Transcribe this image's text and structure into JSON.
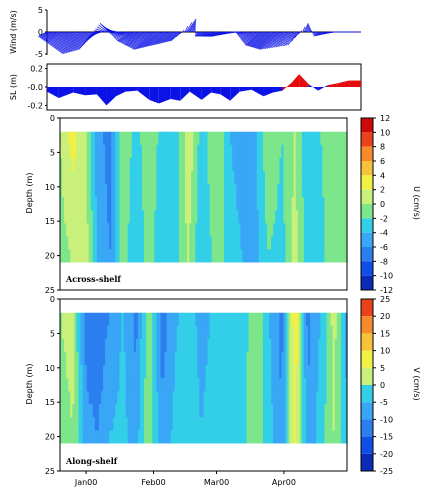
{
  "chart_data": [
    {
      "panel": "wind",
      "type": "line",
      "ylabel": "Wind (m/s)",
      "ylim": [
        -5,
        5
      ],
      "yticks": [
        "5",
        "0",
        "-5"
      ],
      "description_of_marks": "wind stick vectors",
      "x_time_axis": {
        "range": [
          "1999-12-20",
          "2000-04-30"
        ]
      },
      "series": [
        {
          "dates": [
            "1999-12-20",
            "1999-12-27",
            "2000-01-03",
            "2000-01-08",
            "2000-01-15",
            "2000-01-24",
            "2000-02-02",
            "2000-02-08",
            "2000-02-14",
            "2000-02-17",
            "2000-02-22",
            "2000-03-02",
            "2000-03-10",
            "2000-03-18",
            "2000-03-26",
            "2000-04-03",
            "2000-04-06",
            "2000-04-12",
            "2000-04-20",
            "2000-04-28"
          ],
          "u": [
            -2,
            -3,
            -4,
            -3,
            -2,
            -3,
            -4,
            -3,
            -2,
            2,
            -1,
            -2,
            -1,
            -3,
            -4,
            -2,
            1,
            -1,
            -1,
            -0.5
          ],
          "v": [
            -1,
            -3,
            -5,
            -4,
            2,
            -2,
            -4,
            -3,
            -2,
            3,
            -1,
            -1,
            0,
            -3,
            -4,
            -3,
            2,
            -1,
            0,
            0
          ]
        }
      ]
    },
    {
      "panel": "sea-level",
      "type": "area",
      "ylabel": "SL (m)",
      "ylim": [
        -0.25,
        0.2
      ],
      "yticks": [
        "0.2",
        "-0.0",
        "-0.2"
      ],
      "colors": {
        "negative": "#0b12e6",
        "positive": "#e30b0b"
      },
      "series": [
        {
          "dates": [
            "1999-12-20",
            "1999-12-25",
            "1999-12-31",
            "2000-01-05",
            "2000-01-10",
            "2000-01-14",
            "2000-01-18",
            "2000-01-22",
            "2000-01-27",
            "2000-02-01",
            "2000-02-05",
            "2000-02-10",
            "2000-02-14",
            "2000-02-18",
            "2000-02-23",
            "2000-02-27",
            "2000-03-02",
            "2000-03-06",
            "2000-03-10",
            "2000-03-15",
            "2000-03-20",
            "2000-03-24",
            "2000-03-28",
            "2000-04-01",
            "2000-04-04",
            "2000-04-08",
            "2000-04-12",
            "2000-04-16",
            "2000-04-20",
            "2000-04-25",
            "2000-04-30"
          ],
          "values": [
            -0.05,
            -0.12,
            -0.06,
            -0.09,
            -0.08,
            -0.2,
            -0.1,
            -0.05,
            -0.04,
            -0.14,
            -0.18,
            -0.13,
            -0.15,
            -0.05,
            -0.14,
            -0.06,
            -0.08,
            -0.15,
            -0.05,
            -0.03,
            -0.1,
            -0.06,
            -0.04,
            0.05,
            0.14,
            0.03,
            -0.04,
            0.02,
            0.04,
            0.07,
            0.07
          ]
        }
      ]
    },
    {
      "panel": "across-shelf",
      "type": "heatmap",
      "label": "Across-shelf",
      "ylabel": "Depth (m)",
      "ylim": [
        25,
        0
      ],
      "yticks": [
        "0",
        "5",
        "10",
        "15",
        "20",
        "25"
      ],
      "colorbar_label": "U (cm/s)",
      "colorbar_ticks": [
        "12",
        "10",
        "8",
        "6",
        "4",
        "2",
        "0",
        "-2",
        "-4",
        "-6",
        "-8",
        "-10",
        "-12"
      ],
      "depths_m": [
        2,
        21
      ],
      "dates": [
        "1999-12-20",
        "1999-12-26",
        "2000-01-01",
        "2000-01-06",
        "2000-01-12",
        "2000-01-18",
        "2000-01-24",
        "2000-01-30",
        "2000-02-05",
        "2000-02-11",
        "2000-02-17",
        "2000-02-23",
        "2000-03-01",
        "2000-03-07",
        "2000-03-13",
        "2000-03-19",
        "2000-03-25",
        "2000-03-31",
        "2000-04-06",
        "2000-04-12",
        "2000-04-18",
        "2000-04-24",
        "2000-04-30"
      ],
      "values": [
        [
          1,
          4,
          1,
          -4,
          -6,
          1,
          -2,
          1,
          -2,
          -3,
          3,
          -2,
          1,
          -3,
          -4,
          -3,
          1,
          -1,
          1,
          -3,
          -1,
          1,
          0
        ],
        [
          0,
          1,
          2,
          -3,
          -5,
          0,
          -3,
          0,
          -3,
          -2,
          1,
          -3,
          0,
          -2,
          -3,
          -4,
          -1,
          -2,
          2,
          -2,
          -2,
          1,
          0
        ]
      ]
    },
    {
      "panel": "along-shelf",
      "type": "heatmap",
      "label": "Along-shelf",
      "ylabel": "Depth (m)",
      "ylim": [
        25,
        0
      ],
      "yticks": [
        "0",
        "5",
        "10",
        "15",
        "20",
        "25"
      ],
      "colorbar_label": "V (cm/s)",
      "colorbar_ticks": [
        "25",
        "20",
        "15",
        "10",
        "5",
        "0",
        "-5",
        "-10",
        "-15",
        "-20",
        "-25"
      ],
      "x_tick_labels": [
        "Jan00",
        "Feb00",
        "Mar00",
        "Apr00"
      ],
      "depths_m": [
        2,
        21
      ],
      "dates": [
        "1999-12-20",
        "1999-12-26",
        "2000-01-01",
        "2000-01-06",
        "2000-01-12",
        "2000-01-18",
        "2000-01-24",
        "2000-01-30",
        "2000-02-05",
        "2000-02-11",
        "2000-02-17",
        "2000-02-23",
        "2000-03-01",
        "2000-03-07",
        "2000-03-13",
        "2000-03-19",
        "2000-03-25",
        "2000-03-31",
        "2000-04-06",
        "2000-04-12",
        "2000-04-18",
        "2000-04-24",
        "2000-04-30"
      ],
      "values": [
        [
          2,
          3,
          -13,
          -15,
          -10,
          -6,
          -12,
          2,
          -13,
          -7,
          -4,
          -8,
          -5,
          -6,
          -5,
          2,
          -6,
          -12,
          10,
          -12,
          -6,
          4,
          -8
        ],
        [
          1,
          2,
          -8,
          -10,
          -6,
          -5,
          -8,
          1,
          -9,
          -5,
          -3,
          -6,
          -4,
          -5,
          -3,
          1,
          -4,
          -10,
          8,
          -9,
          -4,
          2,
          -6
        ]
      ]
    }
  ]
}
